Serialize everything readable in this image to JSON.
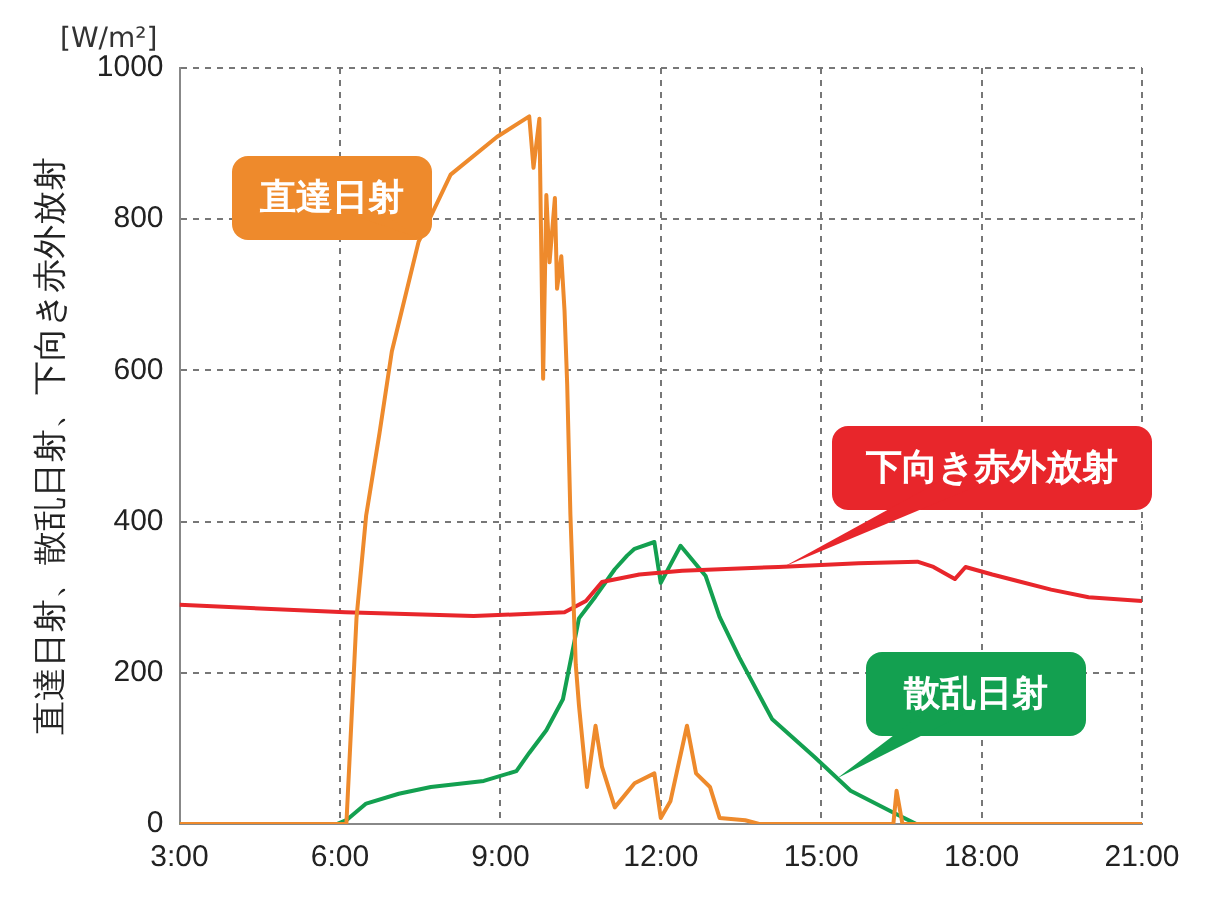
{
  "chart_data": {
    "type": "line",
    "ylabel": "直達日射、散乱日射、下向き赤外放射",
    "annotations": [
      "[W/m²]"
    ],
    "xlim": [
      3,
      21
    ],
    "xticks": [
      {
        "value": 3,
        "label": "3:00"
      },
      {
        "value": 6,
        "label": "6:00"
      },
      {
        "value": 9,
        "label": "9:00"
      },
      {
        "value": 12,
        "label": "12:00"
      },
      {
        "value": 15,
        "label": "15:00"
      },
      {
        "value": 18,
        "label": "18:00"
      },
      {
        "value": 21,
        "label": "21:00"
      }
    ],
    "ylim": [
      0,
      1000
    ],
    "yticks": [
      0,
      200,
      400,
      600,
      800,
      1000
    ],
    "grid": true,
    "legend": false,
    "line_style": "solid",
    "series": [
      {
        "name": "直達日射",
        "color": "#ee8a2c",
        "x": [
          3,
          6.0,
          6.12,
          6.31,
          6.49,
          6.74,
          6.97,
          7.47,
          8.07,
          8.94,
          9.54,
          9.62,
          9.73,
          9.8,
          9.86,
          9.92,
          10.02,
          10.06,
          10.14,
          10.2,
          10.25,
          10.31,
          10.41,
          10.47,
          10.62,
          10.78,
          10.9,
          11.14,
          11.51,
          11.88,
          12.0,
          12.18,
          12.49,
          12.66,
          12.92,
          13.1,
          13.58,
          13.84,
          16.35,
          16.41,
          16.52,
          21
        ],
        "values": [
          0,
          0,
          0,
          273,
          408,
          517,
          625,
          770,
          859,
          909,
          936,
          868,
          933,
          589,
          832,
          743,
          828,
          708,
          751,
          679,
          581,
          409,
          211,
          157,
          49,
          130,
          76,
          22,
          54,
          67,
          8,
          30,
          130,
          67,
          49,
          8,
          5,
          0,
          0,
          44,
          0,
          0
        ]
      },
      {
        "name": "下向き赤外放射",
        "color": "#e8262b",
        "x": [
          3,
          6.1,
          8.5,
          10.2,
          10.6,
          10.9,
          11.6,
          12.4,
          14.2,
          15.7,
          16.8,
          17.1,
          17.5,
          17.7,
          18.2,
          19.3,
          20,
          21
        ],
        "values": [
          290,
          280,
          275,
          280,
          295,
          320,
          330,
          335,
          340,
          345,
          347,
          340,
          324,
          340,
          330,
          310,
          300,
          295
        ]
      },
      {
        "name": "散乱日射",
        "color": "#13a050",
        "x": [
          3,
          5.94,
          6.12,
          6.49,
          7.1,
          7.7,
          8.69,
          9.3,
          9.54,
          9.86,
          10.17,
          10.35,
          10.47,
          10.78,
          11.14,
          11.37,
          11.51,
          11.88,
          12.0,
          12.37,
          12.84,
          13.1,
          13.47,
          14.08,
          14.87,
          15.55,
          16.41,
          16.78,
          21
        ],
        "values": [
          0,
          0,
          5,
          27,
          40,
          49,
          57,
          70,
          94,
          124,
          165,
          229,
          272,
          301,
          337,
          355,
          364,
          373,
          319,
          368,
          328,
          274,
          220,
          139,
          89,
          44,
          13,
          0,
          0
        ]
      }
    ]
  }
}
